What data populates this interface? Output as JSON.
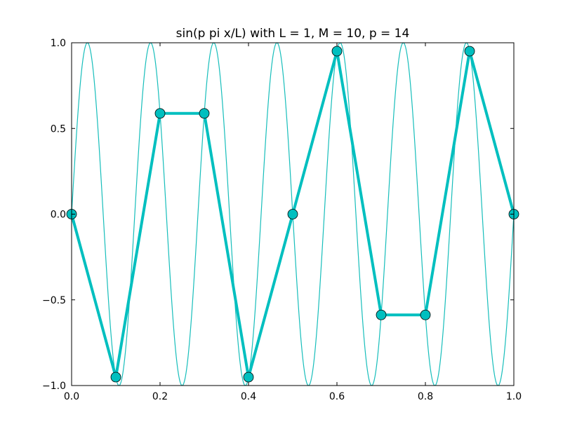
{
  "chart_data": {
    "type": "line",
    "title": "sin(p pi x/L) with L = 1, M = 10, p = 14",
    "xlabel": "",
    "ylabel": "",
    "xlim": [
      0.0,
      1.0
    ],
    "ylim": [
      -1.0,
      1.0
    ],
    "grid": false,
    "legend": "none",
    "x_ticks": [
      0.0,
      0.2,
      0.4,
      0.6,
      0.8,
      1.0
    ],
    "x_tick_labels": [
      "0.0",
      "0.2",
      "0.4",
      "0.6",
      "0.8",
      "1.0"
    ],
    "y_ticks": [
      -1.0,
      -0.5,
      0.0,
      0.5,
      1.0
    ],
    "y_tick_labels": [
      "−1.0",
      "−0.5",
      "0.0",
      "0.5",
      "1.0"
    ],
    "series": [
      {
        "kind": "curve",
        "function": "sin(p*pi*x/L)",
        "L": 1,
        "p": 14,
        "color": "#17bebb"
      },
      {
        "kind": "sampled",
        "M": 10,
        "color": "#00bfbf",
        "marker_color": "#00bfbf",
        "x": [
          0.0,
          0.1,
          0.2,
          0.3,
          0.4,
          0.5,
          0.6,
          0.7,
          0.8,
          0.9,
          1.0
        ],
        "values": [
          0.0,
          -0.951,
          0.588,
          0.588,
          -0.951,
          0.0,
          0.951,
          -0.588,
          -0.588,
          0.951,
          0.0
        ]
      }
    ]
  }
}
